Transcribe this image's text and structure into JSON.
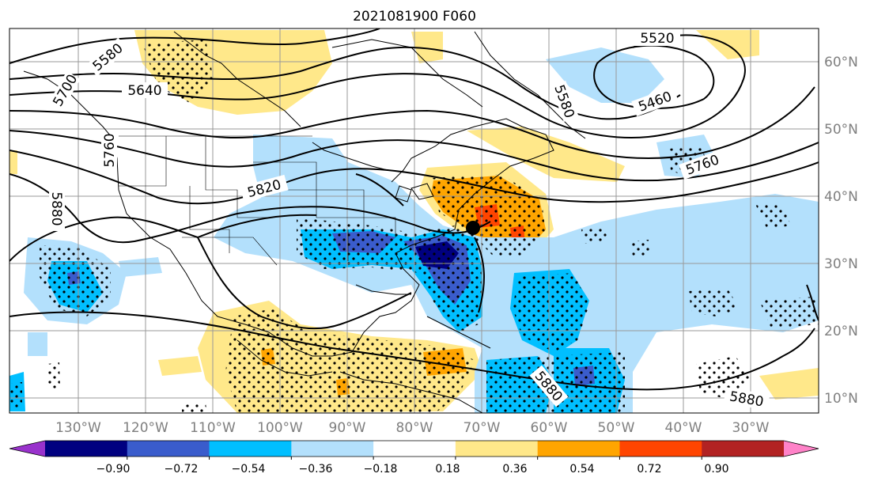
{
  "title": "2021081900 F060",
  "map": {
    "lon_labels": [
      "130°W",
      "120°W",
      "110°W",
      "100°W",
      "90°W",
      "80°W",
      "70°W",
      "60°W",
      "50°W",
      "40°W",
      "30°W"
    ],
    "lat_labels": [
      "60°N",
      "50°N",
      "40°N",
      "30°N",
      "20°N",
      "10°N"
    ],
    "contour_labels": [
      "5580",
      "5640",
      "5520",
      "5460",
      "5760",
      "5820",
      "5880",
      "5880",
      "5880",
      "5760",
      "5580",
      "5700"
    ],
    "colors": {
      "pos1": "#ffe88a",
      "pos2": "#ffa500",
      "pos3": "#ff4500",
      "pos4": "#b22222",
      "pos5": "#ff82c8",
      "neg1": "#b3e0fc",
      "neg2": "#00bfff",
      "neg3": "#3a5ccc",
      "neg4": "#000080",
      "neg5": "#9932cc"
    }
  },
  "colorbar": {
    "ticks": [
      "−0.90",
      "−0.72",
      "−0.54",
      "−0.36",
      "−0.18",
      "0.18",
      "0.36",
      "0.54",
      "0.72",
      "0.90"
    ],
    "colors": [
      "#9932cc",
      "#000080",
      "#3a5ccc",
      "#00bfff",
      "#b3e0fc",
      "#ffffff",
      "#ffe88a",
      "#ffa500",
      "#ff4500",
      "#b22222",
      "#ff82c8"
    ]
  }
}
